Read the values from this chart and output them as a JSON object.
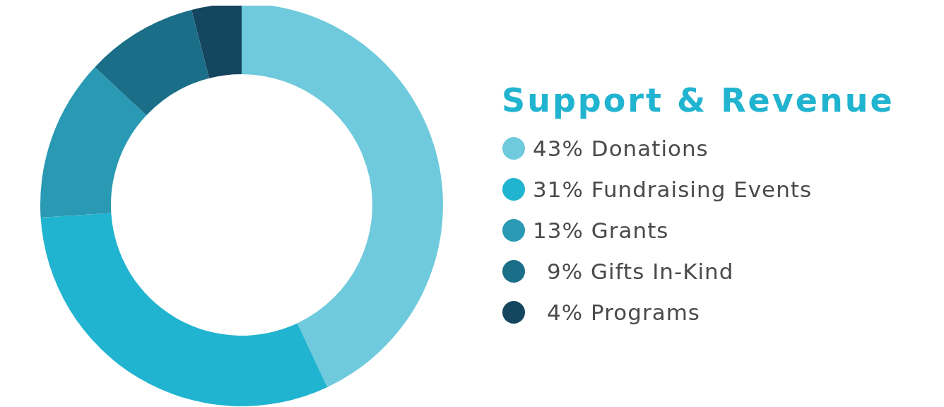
{
  "chart_data": {
    "type": "donut",
    "title": "Support & Revenue",
    "categories": [
      "Donations",
      "Fundraising Events",
      "Grants",
      "Gifts In-Kind",
      "Programs"
    ],
    "values": [
      43,
      31,
      13,
      9,
      4
    ],
    "value_labels": [
      "43%",
      "31%",
      "13%",
      "9%",
      "4%"
    ],
    "colors": [
      "#6ecadc",
      "#21b4d0",
      "#2a99b4",
      "#1b6e88",
      "#144660"
    ],
    "legend": "right"
  }
}
